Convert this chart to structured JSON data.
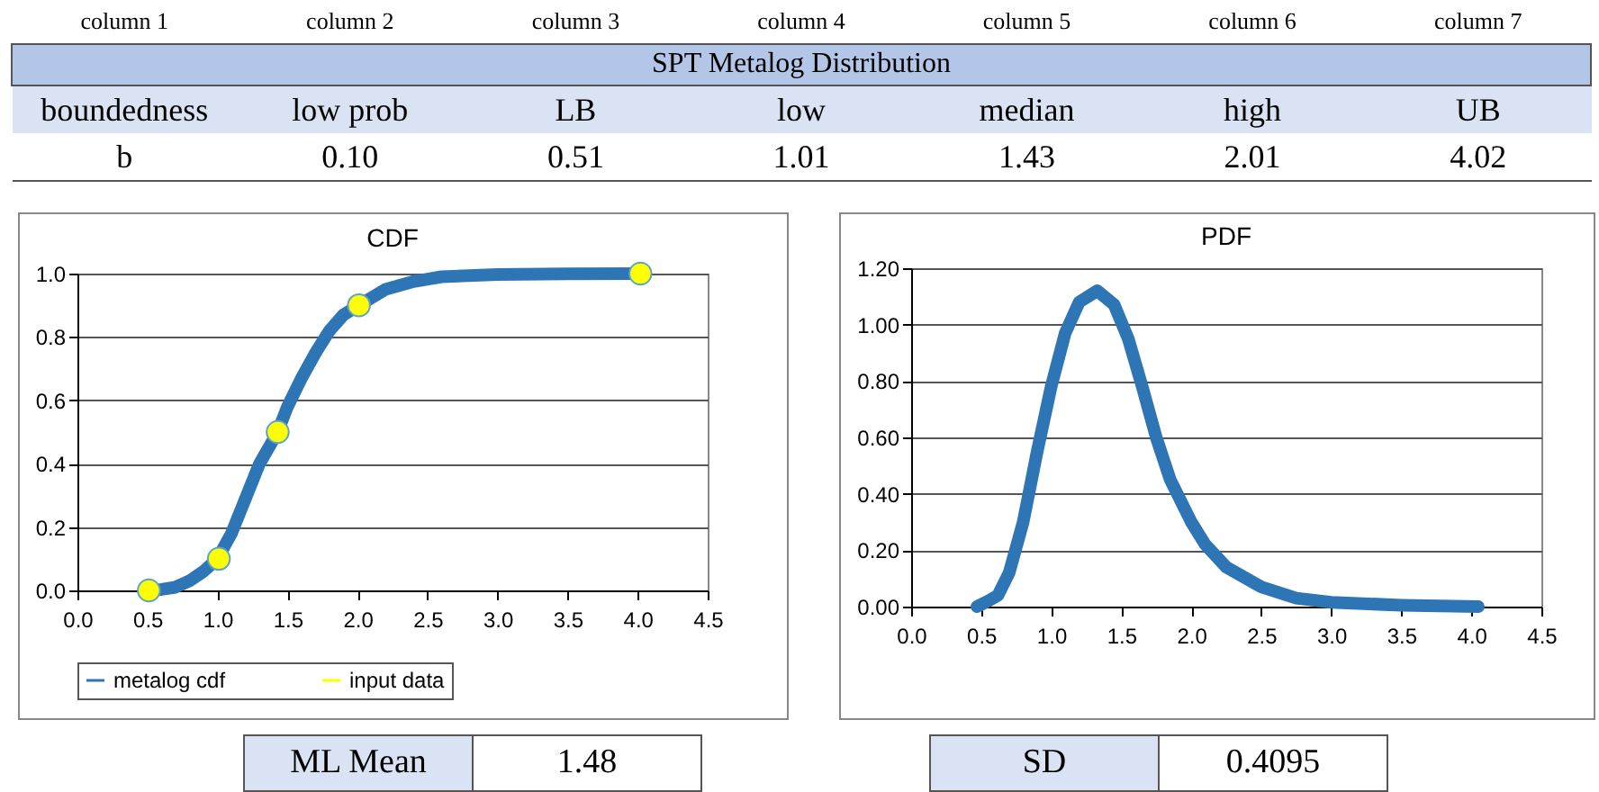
{
  "chart_data": [
    {
      "type": "other",
      "title": "SPT Metalog Distribution",
      "categories": [
        "column 1",
        "column 2",
        "column 3",
        "column 4",
        "column 5",
        "column 6",
        "column 7"
      ],
      "annotations": [
        "boundedness",
        "low prob",
        "LB",
        "low",
        "median",
        "high",
        "UB",
        "b",
        "0.10",
        "0.51",
        "1.01",
        "1.43",
        "2.01",
        "4.02"
      ]
    },
    {
      "type": "line",
      "title": "CDF",
      "xlim": [
        0,
        4.5
      ],
      "ylim": [
        0,
        1
      ],
      "xticks": [
        {
          "value": 0,
          "label": "0.0"
        },
        0.5,
        {
          "value": 1,
          "label": "1.0"
        },
        1.5,
        {
          "value": 2,
          "label": "2.0"
        },
        2.5,
        {
          "value": 3,
          "label": "3.0"
        },
        3.5,
        {
          "value": 4,
          "label": "4.0"
        },
        4.5
      ],
      "yticks": [
        {
          "value": 0,
          "label": "0.0"
        },
        0.2,
        0.4,
        0.6,
        0.8,
        {
          "value": 1,
          "label": "1.0"
        }
      ],
      "grid": "y",
      "legend": "bottom",
      "series": [
        {
          "name": "metalog cdf",
          "type": "line",
          "color": "#2e75b6",
          "line_style": "solid",
          "marker": "none",
          "x": [
            0.51,
            0.6,
            0.7,
            0.8,
            0.9,
            1.0,
            1.1,
            1.2,
            1.3,
            1.43,
            1.5,
            1.6,
            1.7,
            1.8,
            1.9,
            2.01,
            2.2,
            2.4,
            2.6,
            3.0,
            3.5,
            4.02
          ],
          "values": [
            0,
            0.003,
            0.01,
            0.03,
            0.06,
            0.1,
            0.18,
            0.29,
            0.4,
            0.5,
            0.58,
            0.67,
            0.75,
            0.82,
            0.87,
            0.9,
            0.95,
            0.975,
            0.99,
            0.997,
            0.999,
            1.0
          ]
        },
        {
          "name": "input data",
          "type": "scatter",
          "color": "#ffff00",
          "marker": "circle",
          "x": [
            0.51,
            1.01,
            1.43,
            2.01,
            4.02
          ],
          "values": [
            0,
            0.1,
            0.5,
            0.9,
            1.0
          ]
        }
      ]
    },
    {
      "type": "line",
      "title": "PDF",
      "xlim": [
        0,
        4.5
      ],
      "ylim": [
        0,
        1.2
      ],
      "xticks": [
        {
          "value": 0,
          "label": "0.0"
        },
        0.5,
        {
          "value": 1,
          "label": "1.0"
        },
        1.5,
        {
          "value": 2,
          "label": "2.0"
        },
        2.5,
        {
          "value": 3,
          "label": "3.0"
        },
        3.5,
        {
          "value": 4,
          "label": "4.0"
        },
        4.5
      ],
      "yticks": [
        {
          "value": 0,
          "label": "0.00"
        },
        {
          "value": 0.2,
          "label": "0.20"
        },
        {
          "value": 0.4,
          "label": "0.40"
        },
        {
          "value": 0.6,
          "label": "0.60"
        },
        {
          "value": 0.8,
          "label": "0.80"
        },
        {
          "value": 1,
          "label": "1.00"
        },
        {
          "value": 1.2,
          "label": "1.20"
        }
      ],
      "grid": "y",
      "series": [
        {
          "type": "line",
          "color": "#2e75b6",
          "line_style": "solid",
          "marker": "none",
          "x": [
            0.47,
            0.55,
            0.62,
            0.7,
            0.8,
            0.9,
            1.0,
            1.1,
            1.2,
            1.33,
            1.45,
            1.55,
            1.65,
            1.75,
            1.85,
            2.0,
            2.1,
            2.25,
            2.5,
            2.75,
            3.0,
            3.5,
            4.05
          ],
          "values": [
            0,
            0.02,
            0.04,
            0.12,
            0.3,
            0.55,
            0.78,
            0.97,
            1.08,
            1.12,
            1.07,
            0.95,
            0.78,
            0.6,
            0.45,
            0.3,
            0.22,
            0.14,
            0.07,
            0.03,
            0.015,
            0.005,
            0
          ]
        }
      ]
    },
    {
      "type": "other",
      "annotations": [
        "ML Mean",
        "1.48",
        "SD",
        "0.4095"
      ]
    }
  ]
}
